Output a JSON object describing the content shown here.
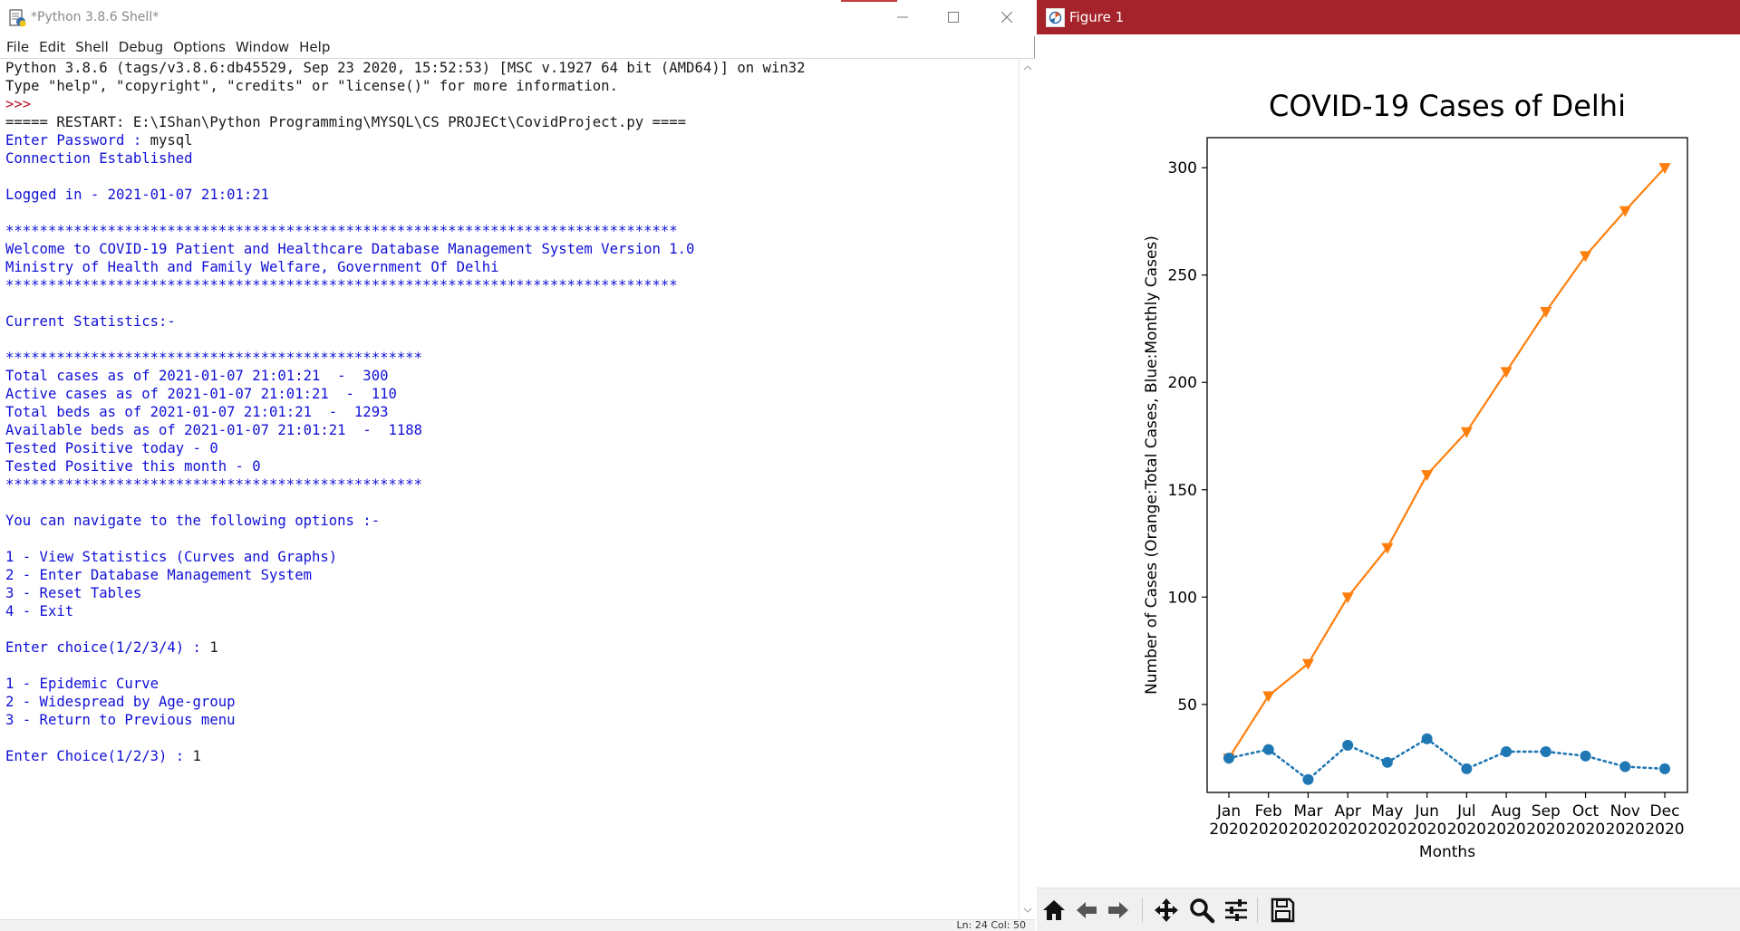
{
  "shell": {
    "title": "*Python 3.8.6 Shell*",
    "menu": [
      "File",
      "Edit",
      "Shell",
      "Debug",
      "Options",
      "Window",
      "Help"
    ],
    "status": "Ln: 24   Col: 50",
    "lines": [
      {
        "t": "Python 3.8.6 (tags/v3.8.6:db45529, Sep 23 2020, 15:52:53) [MSC v.1927 64 bit (AMD64)] on win32",
        "c": "out"
      },
      {
        "t": "Type \"help\", \"copyright\", \"credits\" or \"license()\" for more information.",
        "c": "out"
      },
      {
        "t": ">>> ",
        "c": "prompt"
      },
      {
        "t": "===== RESTART: E:\\IShan\\Python Programming\\MYSQL\\CS PROJECt\\CovidProject.py ====",
        "c": "out"
      },
      {
        "t": "Enter Password : ",
        "c": "user",
        "in": "mysql"
      },
      {
        "t": "Connection Established",
        "c": "user"
      },
      {
        "t": "",
        "c": "user"
      },
      {
        "t": "Logged in - 2021-01-07 21:01:21",
        "c": "user"
      },
      {
        "t": "",
        "c": "user"
      },
      {
        "t": "*******************************************************************************",
        "c": "user"
      },
      {
        "t": "Welcome to COVID-19 Patient and Healthcare Database Management System Version 1.0",
        "c": "user"
      },
      {
        "t": "Ministry of Health and Family Welfare, Government Of Delhi",
        "c": "user"
      },
      {
        "t": "*******************************************************************************",
        "c": "user"
      },
      {
        "t": "",
        "c": "user"
      },
      {
        "t": "Current Statistics:-",
        "c": "user"
      },
      {
        "t": "",
        "c": "user"
      },
      {
        "t": "*************************************************",
        "c": "user"
      },
      {
        "t": "Total cases as of 2021-01-07 21:01:21  -  300",
        "c": "user"
      },
      {
        "t": "Active cases as of 2021-01-07 21:01:21  -  110",
        "c": "user"
      },
      {
        "t": "Total beds as of 2021-01-07 21:01:21  -  1293",
        "c": "user"
      },
      {
        "t": "Available beds as of 2021-01-07 21:01:21  -  1188",
        "c": "user"
      },
      {
        "t": "Tested Positive today - 0",
        "c": "user"
      },
      {
        "t": "Tested Positive this month - 0",
        "c": "user"
      },
      {
        "t": "*************************************************",
        "c": "user"
      },
      {
        "t": "",
        "c": "user"
      },
      {
        "t": "You can navigate to the following options :-",
        "c": "user"
      },
      {
        "t": "",
        "c": "user"
      },
      {
        "t": "1 - View Statistics (Curves and Graphs)",
        "c": "user"
      },
      {
        "t": "2 - Enter Database Management System",
        "c": "user"
      },
      {
        "t": "3 - Reset Tables",
        "c": "user"
      },
      {
        "t": "4 - Exit",
        "c": "user"
      },
      {
        "t": "",
        "c": "user"
      },
      {
        "t": "Enter choice(1/2/3/4) : ",
        "c": "user",
        "in": "1"
      },
      {
        "t": "",
        "c": "user"
      },
      {
        "t": "1 - Epidemic Curve",
        "c": "user"
      },
      {
        "t": "2 - Widespread by Age-group",
        "c": "user"
      },
      {
        "t": "3 - Return to Previous menu",
        "c": "user"
      },
      {
        "t": "",
        "c": "user"
      },
      {
        "t": "Enter Choice(1/2/3) : ",
        "c": "user",
        "in": "1"
      }
    ]
  },
  "figure": {
    "title": "Figure 1",
    "toolbar": [
      "home-icon",
      "back-arrow-icon",
      "forward-arrow-icon",
      "pan-icon",
      "zoom-icon",
      "configure-subplots-icon",
      "save-icon"
    ]
  },
  "colors": {
    "orange": "#ff7f0e",
    "blue": "#1f77b4",
    "figure_titlebar": "#a5232a",
    "shell_user_text": "#1010d6",
    "shell_prompt": "#b4121a"
  },
  "chart_data": {
    "type": "line",
    "title": "COVID-19 Cases of Delhi",
    "xlabel": "Months",
    "ylabel": "Number of Cases (Orange:Total Cases, Blue:Monthly Cases)",
    "categories": [
      "Jan\n2020",
      "Feb\n2020",
      "Mar\n2020",
      "Apr\n2020",
      "May\n2020",
      "Jun\n2020",
      "Jul\n2020",
      "Aug\n2020",
      "Sep\n2020",
      "Oct\n2020",
      "Nov\n2020",
      "Dec\n2020"
    ],
    "yticks": [
      50,
      100,
      150,
      200,
      250,
      300
    ],
    "ylim": [
      9,
      314
    ],
    "grid": false,
    "series": [
      {
        "color": "#ff7f0e",
        "marker": "triangle-down",
        "linestyle": "solid",
        "values": [
          25,
          54,
          69,
          100,
          123,
          157,
          177,
          205,
          233,
          259,
          280,
          300
        ]
      },
      {
        "color": "#1f77b4",
        "marker": "circle",
        "linestyle": "dotted",
        "values": [
          25,
          29,
          15,
          31,
          23,
          34,
          20,
          28,
          28,
          26,
          21,
          20
        ]
      }
    ]
  }
}
